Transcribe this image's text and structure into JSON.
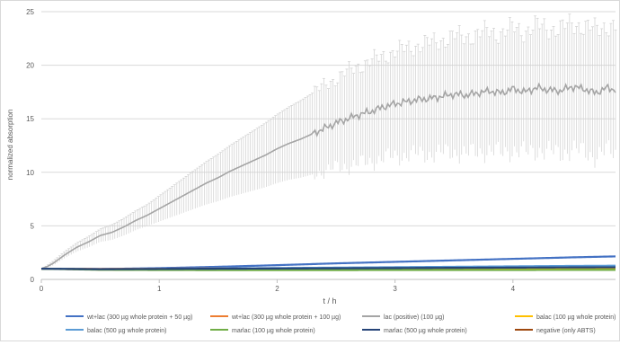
{
  "chart_data": {
    "type": "line",
    "title": "",
    "xlabel": "t / h",
    "ylabel": "normalized absorption",
    "xlim": [
      0,
      4.87
    ],
    "ylim": [
      0,
      25
    ],
    "xticks": [
      "0",
      "1",
      "2",
      "3",
      "4"
    ],
    "yticks": [
      "0",
      "5",
      "10",
      "15",
      "20",
      "25"
    ],
    "grid": "horizontal",
    "legend_position": "bottom",
    "series": [
      {
        "name": "wt+lac (300 µg whole protein + 50 µg)",
        "color": "#4472c4",
        "x": [
          0,
          0.5,
          1,
          1.5,
          2,
          2.5,
          3,
          3.5,
          4,
          4.5,
          4.87
        ],
        "y": [
          1.0,
          0.97,
          1.05,
          1.18,
          1.33,
          1.5,
          1.64,
          1.78,
          1.92,
          2.06,
          2.15
        ]
      },
      {
        "name": "wt+lac (300 µg whole protein + 100 µg)",
        "color": "#ed7d31",
        "x": [
          0,
          0.5,
          1,
          1.5,
          2,
          2.5,
          3,
          3.5,
          4,
          4.5,
          4.87
        ],
        "y": [
          1.0,
          0.98,
          1.0,
          1.02,
          1.04,
          1.05,
          1.07,
          1.08,
          1.09,
          1.1,
          1.1
        ]
      },
      {
        "name": "lac (positive)  (100 µg)",
        "color": "#a5a5a5",
        "x": [
          0,
          0.05,
          0.1,
          0.2,
          0.3,
          0.4,
          0.5,
          0.6,
          0.7,
          0.8,
          0.9,
          1.0,
          1.1,
          1.2,
          1.3,
          1.4,
          1.5,
          1.6,
          1.7,
          1.8,
          1.9,
          2.0,
          2.1,
          2.2,
          2.3,
          2.4,
          2.5,
          2.6,
          2.7,
          2.8,
          2.9,
          3.0,
          3.1,
          3.2,
          3.3,
          3.4,
          3.5,
          3.6,
          3.7,
          3.8,
          3.9,
          4.0,
          4.1,
          4.2,
          4.3,
          4.4,
          4.5,
          4.6,
          4.7,
          4.8,
          4.87
        ],
        "y": [
          1.0,
          1.2,
          1.5,
          2.3,
          3.0,
          3.5,
          4.1,
          4.4,
          4.9,
          5.5,
          6.0,
          6.6,
          7.2,
          7.8,
          8.4,
          9.0,
          9.5,
          10.1,
          10.6,
          11.1,
          11.6,
          12.2,
          12.7,
          13.1,
          13.6,
          14.1,
          14.6,
          15.0,
          15.4,
          15.7,
          16.1,
          16.4,
          16.6,
          16.8,
          16.9,
          17.1,
          17.3,
          17.2,
          17.4,
          17.6,
          17.4,
          17.8,
          17.5,
          17.9,
          17.7,
          17.6,
          18.0,
          17.8,
          17.4,
          17.9,
          17.7
        ],
        "err": [
          0.0,
          0.1,
          0.2,
          0.3,
          0.4,
          0.5,
          0.6,
          0.7,
          0.8,
          0.9,
          1.0,
          1.2,
          1.4,
          1.6,
          1.8,
          2.0,
          2.2,
          2.4,
          2.6,
          2.8,
          3.0,
          3.2,
          3.4,
          3.6,
          3.8,
          4.0,
          4.2,
          4.4,
          4.6,
          4.7,
          4.8,
          4.9,
          5.0,
          5.1,
          5.2,
          5.3,
          5.4,
          5.5,
          5.5,
          5.6,
          5.6,
          5.7,
          5.7,
          5.8,
          5.8,
          5.8,
          5.9,
          5.9,
          5.9,
          5.9,
          5.9
        ]
      },
      {
        "name": "balac (100 µg whole protein)",
        "color": "#ffc000",
        "x": [
          0,
          0.5,
          1,
          1.5,
          2,
          2.5,
          3,
          3.5,
          4,
          4.5,
          4.87
        ],
        "y": [
          1.0,
          0.95,
          0.93,
          0.93,
          0.94,
          0.95,
          0.96,
          0.97,
          0.98,
          0.99,
          1.0
        ]
      },
      {
        "name": "balac (500 µg whole protein)",
        "color": "#5b9bd5",
        "x": [
          0,
          0.5,
          1,
          1.5,
          2,
          2.5,
          3,
          3.5,
          4,
          4.5,
          4.87
        ],
        "y": [
          1.0,
          0.96,
          0.98,
          1.02,
          1.06,
          1.1,
          1.14,
          1.18,
          1.22,
          1.26,
          1.28
        ]
      },
      {
        "name": "marlac (100 µg whole protein)",
        "color": "#70ad47",
        "x": [
          0,
          0.5,
          1,
          1.5,
          2,
          2.5,
          3,
          3.5,
          4,
          4.5,
          4.87
        ],
        "y": [
          1.0,
          0.9,
          0.88,
          0.87,
          0.87,
          0.87,
          0.88,
          0.88,
          0.88,
          0.89,
          0.89
        ]
      },
      {
        "name": "marlac (500 µg whole protein)",
        "color": "#264478",
        "x": [
          0,
          0.5,
          1,
          1.5,
          2,
          2.5,
          3,
          3.5,
          4,
          4.5,
          4.87
        ],
        "y": [
          1.0,
          0.95,
          0.98,
          1.0,
          1.02,
          1.04,
          1.06,
          1.08,
          1.1,
          1.12,
          1.13
        ]
      },
      {
        "name": "negative (only ABTS)",
        "color": "#9e480e",
        "x": [
          0,
          0.5,
          1,
          1.5,
          2,
          2.5,
          3,
          3.5,
          4,
          4.5,
          4.87
        ],
        "y": [
          1.0,
          0.92,
          0.9,
          0.9,
          0.9,
          0.91,
          0.91,
          0.92,
          0.92,
          0.93,
          0.93
        ]
      }
    ]
  }
}
